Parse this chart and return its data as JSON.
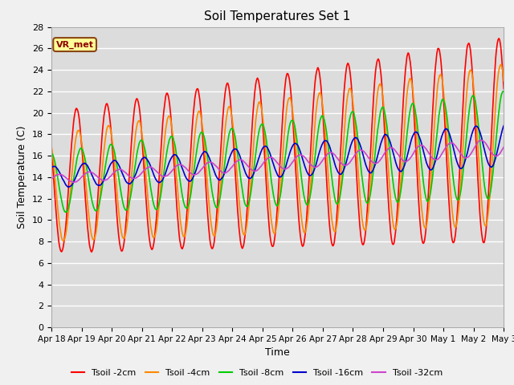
{
  "title": "Soil Temperatures Set 1",
  "xlabel": "Time",
  "ylabel": "Soil Temperature (C)",
  "ylim": [
    0,
    28
  ],
  "xlim": [
    0,
    360
  ],
  "background_color": "#dcdcdc",
  "figure_color": "#f0f0f0",
  "grid_color": "#ffffff",
  "annotation_text": "VR_met",
  "annotation_box_color": "#ffff99",
  "annotation_border_color": "#8B4513",
  "lines": {
    "Tsoil -2cm": {
      "color": "#ff0000",
      "lw": 1.2
    },
    "Tsoil -4cm": {
      "color": "#ff8800",
      "lw": 1.2
    },
    "Tsoil -8cm": {
      "color": "#00cc00",
      "lw": 1.2
    },
    "Tsoil -16cm": {
      "color": "#0000cc",
      "lw": 1.2
    },
    "Tsoil -32cm": {
      "color": "#cc44cc",
      "lw": 1.2
    }
  },
  "xtick_positions": [
    0,
    24,
    48,
    72,
    96,
    120,
    144,
    168,
    192,
    216,
    240,
    264,
    288,
    312,
    336,
    360
  ],
  "xtick_labels": [
    "Apr 18",
    "Apr 19",
    "Apr 20",
    "Apr 21",
    "Apr 22",
    "Apr 23",
    "Apr 24",
    "Apr 25",
    "Apr 26",
    "Apr 27",
    "Apr 28",
    "Apr 29",
    "Apr 30",
    "May 1",
    "May 2",
    "May 3"
  ],
  "ytick_positions": [
    0,
    2,
    4,
    6,
    8,
    10,
    12,
    14,
    16,
    18,
    20,
    22,
    24,
    26,
    28
  ]
}
